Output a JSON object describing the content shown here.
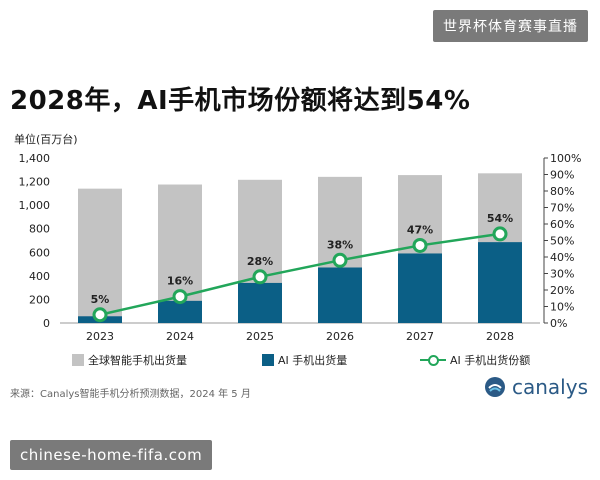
{
  "top_tag": "世界杯体育赛事直播",
  "headline": "2028年，AI手机市场份额将达到54%",
  "unit_label": "单位(百万台)",
  "source": "来源：Canalys智能手机分析预测数据，2024 年 5 月",
  "brand": "canalys",
  "bottom_tag": "chinese-home-fifa.com",
  "legend": {
    "total": "全球智能手机出货量",
    "ai": "AI 手机出货量",
    "share": "AI 手机出货份额"
  },
  "colors": {
    "total": "#c3c3c3",
    "ai": "#0b5f86",
    "share": "#22a65a"
  },
  "chart_data": {
    "type": "bar",
    "categories": [
      "2023",
      "2024",
      "2025",
      "2026",
      "2027",
      "2028"
    ],
    "series": [
      {
        "name": "全球智能手机出货量",
        "values": [
          1140,
          1175,
          1215,
          1240,
          1255,
          1270
        ]
      },
      {
        "name": "AI 手机出货量",
        "values": [
          57,
          188,
          340,
          471,
          590,
          686
        ]
      },
      {
        "name": "AI 手机出货份额",
        "values": [
          5,
          16,
          28,
          38,
          47,
          54
        ],
        "axis": "right",
        "type": "line"
      }
    ],
    "share_labels": [
      "5%",
      "16%",
      "28%",
      "38%",
      "47%",
      "54%"
    ],
    "ylim": [
      0,
      1400
    ],
    "yticks": [
      "0",
      "200",
      "400",
      "600",
      "800",
      "1,000",
      "1,200",
      "1,400"
    ],
    "y2lim": [
      0,
      100
    ],
    "y2ticks": [
      "0%",
      "10%",
      "20%",
      "30%",
      "40%",
      "50%",
      "60%",
      "70%",
      "80%",
      "90%",
      "100%"
    ],
    "grid": false,
    "legend_position": "bottom"
  }
}
